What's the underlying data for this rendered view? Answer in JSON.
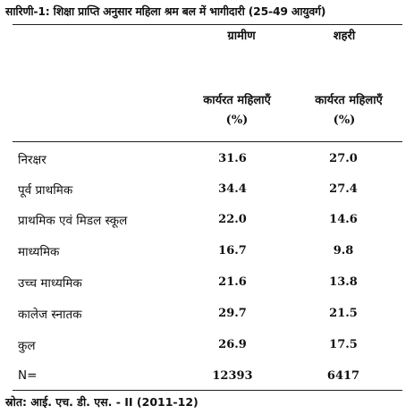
{
  "title": "सारिणी-1: शिक्षा प्राप्ति अनुसार महिला श्रम बल में भागीदारी (25-49 आयुवर्ग)",
  "columns": {
    "rural": {
      "heading": "ग्रामीण",
      "subheading": "कार्यरत महिलाएँ",
      "unit": "(%)"
    },
    "urban": {
      "heading": "शहरी",
      "subheading": "कार्यरत महिलाएँ",
      "unit": "(%)"
    }
  },
  "rows": [
    {
      "label": "निरक्षर",
      "rural": "31.6",
      "urban": "27.0"
    },
    {
      "label": "पूर्व प्राथमिक",
      "rural": "34.4",
      "urban": "27.4"
    },
    {
      "label": "प्राथमिक एवं मिडल स्कूल",
      "rural": "22.0",
      "urban": "14.6"
    },
    {
      "label": "माध्यमिक",
      "rural": "16.7",
      "urban": "9.8"
    },
    {
      "label": "उच्च माध्यमिक",
      "rural": "21.6",
      "urban": "13.8"
    },
    {
      "label": "कालेज स्नातक",
      "rural": "29.7",
      "urban": "21.5"
    },
    {
      "label": "कुल",
      "rural": "26.9",
      "urban": "17.5"
    },
    {
      "label": "N=",
      "rural": "12393",
      "urban": "6417"
    }
  ],
  "source": "स्रोत: आई. एच. डी. एस. - II (2011-12)"
}
